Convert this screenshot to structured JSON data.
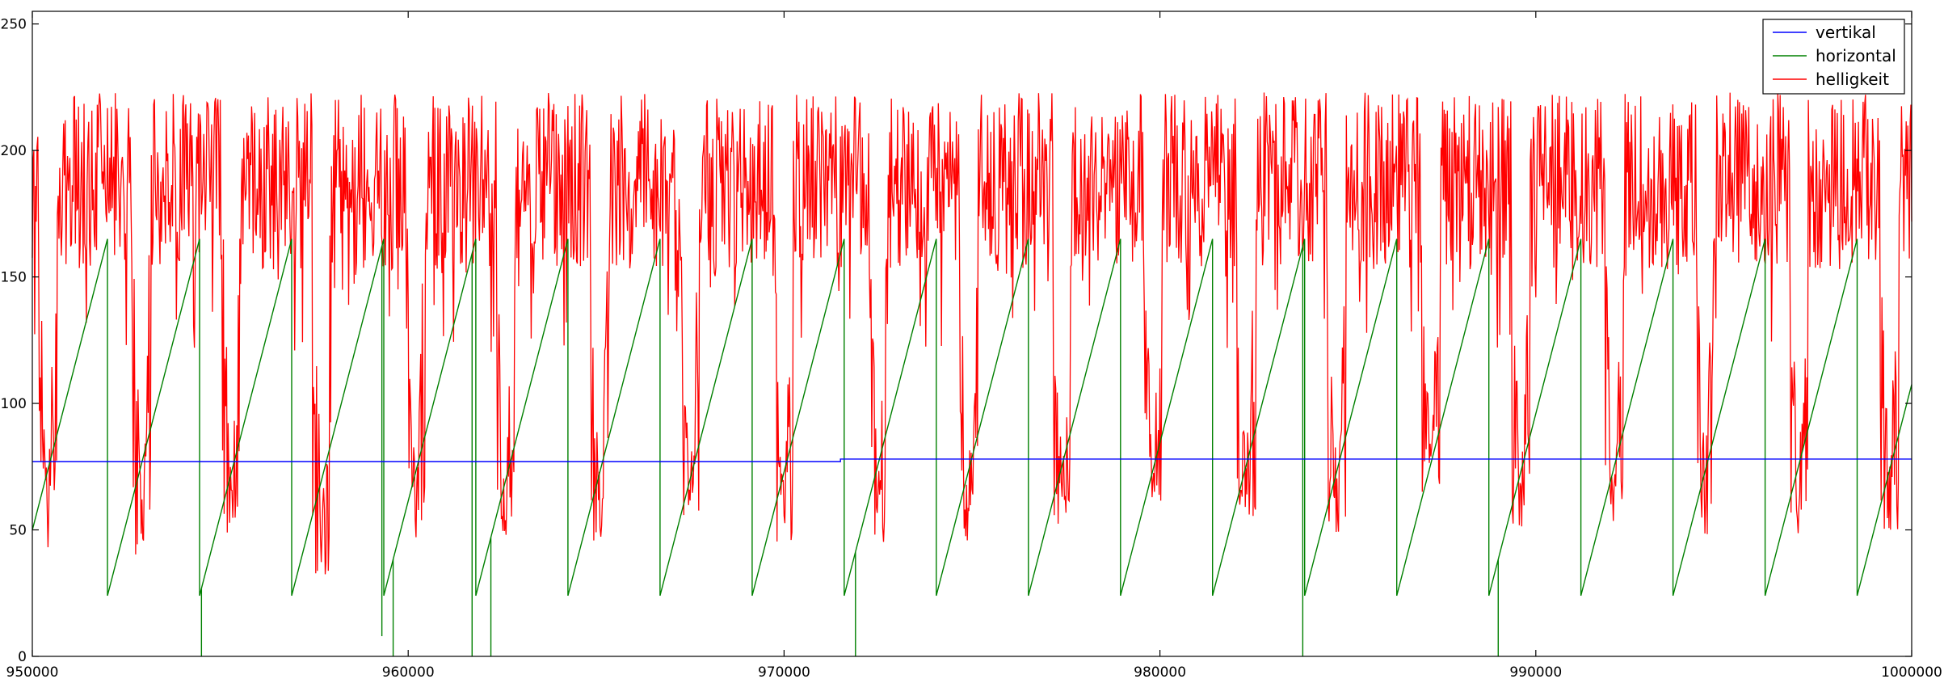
{
  "chart_data": {
    "type": "line",
    "title": "",
    "xlabel": "",
    "ylabel": "",
    "xlim": [
      950000,
      1000000
    ],
    "ylim": [
      0,
      255
    ],
    "x_ticks": [
      "950000",
      "960000",
      "970000",
      "980000",
      "990000",
      "1000000"
    ],
    "y_ticks": [
      "0",
      "50",
      "100",
      "150",
      "200",
      "250"
    ],
    "grid": false,
    "legend_position": "top-right",
    "series": [
      {
        "name": "vertikal",
        "color": "#0000ff",
        "points": [
          [
            950000,
            77
          ],
          [
            971500,
            77
          ],
          [
            971500,
            78
          ],
          [
            1000000,
            78
          ]
        ]
      },
      {
        "name": "horizontal",
        "color": "#008000",
        "description": "sawtooth ramp from about 24 to about 165, period about 2450 samples",
        "period": 2450,
        "phase_start": 952000,
        "min": 24,
        "max": 165,
        "dropouts": [
          [
            954500,
            0
          ],
          [
            959300,
            8
          ],
          [
            959600,
            0
          ],
          [
            961700,
            0
          ],
          [
            962200,
            0
          ],
          [
            971900,
            0
          ],
          [
            983800,
            0
          ],
          [
            989000,
            0
          ]
        ]
      },
      {
        "name": "helligkeit",
        "color": "#ff0000",
        "description": "noisy brightness signal mostly between 130 and 230 with deep dips",
        "typical_range": [
          130,
          230
        ],
        "dips": [
          [
            950400,
            42
          ],
          [
            952900,
            40
          ],
          [
            955300,
            46
          ],
          [
            957700,
            32
          ],
          [
            960200,
            42
          ],
          [
            962600,
            43
          ],
          [
            965100,
            45
          ],
          [
            967500,
            45
          ],
          [
            970000,
            45
          ],
          [
            972500,
            44
          ],
          [
            974900,
            45
          ],
          [
            977400,
            48
          ],
          [
            979800,
            60
          ],
          [
            982300,
            55
          ],
          [
            984700,
            48
          ],
          [
            987200,
            64
          ],
          [
            989600,
            44
          ],
          [
            992100,
            48
          ],
          [
            994500,
            48
          ],
          [
            997000,
            48
          ],
          [
            999400,
            50
          ]
        ]
      }
    ]
  }
}
